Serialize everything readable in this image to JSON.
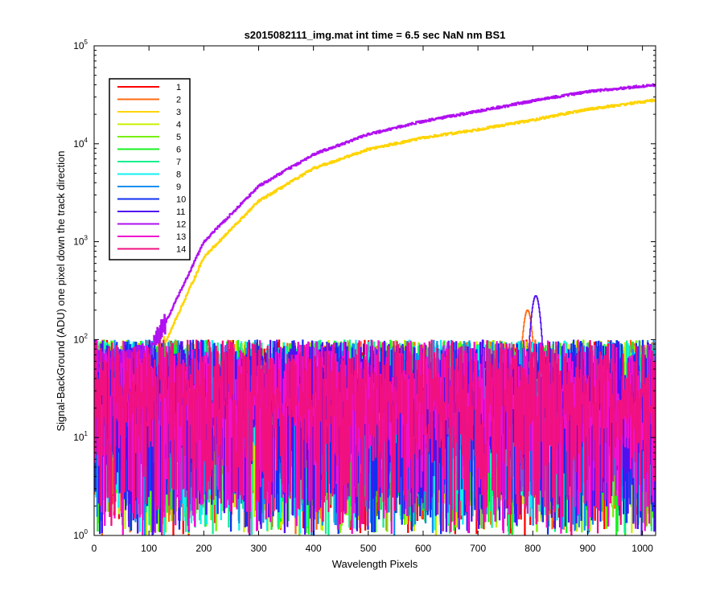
{
  "chart_data": {
    "type": "line",
    "title": "s2015082111_img.mat int time = 6.5 sec  NaN nm BS1",
    "xlabel": "Wavelength Pixels",
    "ylabel": "Signal-BackGround (ADU) one pixel down the track direction",
    "xlim": [
      0,
      1024
    ],
    "ylim": [
      1,
      100000
    ],
    "yscale": "log",
    "x_ticks": [
      "0",
      "100",
      "200",
      "300",
      "400",
      "500",
      "600",
      "700",
      "800",
      "900",
      "1000"
    ],
    "y_ticks": [
      {
        "base": "10",
        "exp": "0"
      },
      {
        "base": "10",
        "exp": "1"
      },
      {
        "base": "10",
        "exp": "2"
      },
      {
        "base": "10",
        "exp": "3"
      },
      {
        "base": "10",
        "exp": "4"
      },
      {
        "base": "10",
        "exp": "5"
      }
    ],
    "legend_position": "top-left",
    "series": [
      {
        "name": "1",
        "color": "#ff0000",
        "kind": "noise",
        "level": 35
      },
      {
        "name": "2",
        "color": "#ff6a10",
        "kind": "noise",
        "level": 35,
        "peak": {
          "x": 790,
          "y": 200
        }
      },
      {
        "name": "3",
        "color": "#ffd400",
        "kind": "rise",
        "x": [
          0,
          60,
          100,
          130,
          200,
          300,
          400,
          500,
          600,
          700,
          800,
          900,
          1024
        ],
        "y": [
          60,
          60,
          60,
          95,
          700,
          2600,
          5600,
          8800,
          11500,
          14000,
          17500,
          22500,
          28000
        ]
      },
      {
        "name": "4",
        "color": "#c8f000",
        "kind": "noise",
        "level": 35
      },
      {
        "name": "5",
        "color": "#78f000",
        "kind": "noise",
        "level": 35
      },
      {
        "name": "6",
        "color": "#18f020",
        "kind": "noise",
        "level": 35
      },
      {
        "name": "7",
        "color": "#10f090",
        "kind": "noise",
        "level": 35
      },
      {
        "name": "8",
        "color": "#10f0f0",
        "kind": "noise",
        "level": 35
      },
      {
        "name": "9",
        "color": "#1090f0",
        "kind": "noise",
        "level": 35
      },
      {
        "name": "10",
        "color": "#1030f0",
        "kind": "noise",
        "level": 35
      },
      {
        "name": "11",
        "color": "#5010f0",
        "kind": "noise",
        "level": 35,
        "peak": {
          "x": 805,
          "y": 280
        }
      },
      {
        "name": "12",
        "color": "#b010f0",
        "kind": "rise",
        "x": [
          0,
          60,
          100,
          130,
          200,
          300,
          400,
          500,
          600,
          700,
          800,
          900,
          1024
        ],
        "y": [
          60,
          60,
          70,
          150,
          1000,
          3700,
          7800,
          12500,
          17000,
          21500,
          27500,
          34000,
          40000
        ]
      },
      {
        "name": "13",
        "color": "#f010d0",
        "kind": "noise",
        "level": 35
      },
      {
        "name": "14",
        "color": "#f01080",
        "kind": "noise",
        "level": 35
      }
    ]
  }
}
